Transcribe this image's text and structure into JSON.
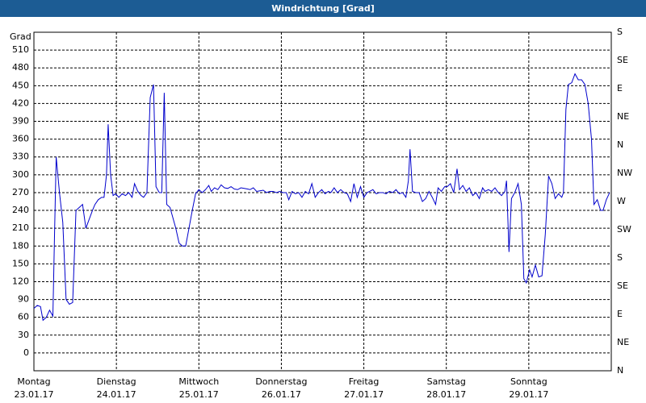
{
  "chart_data": {
    "type": "line",
    "title": "Windrichtung [Grad]",
    "y_label": "Grad",
    "xlim": [
      0,
      7
    ],
    "xticks": [
      {
        "value": 0,
        "label": "Montag"
      },
      {
        "value": 1,
        "label": "Dienstag"
      },
      {
        "value": 2,
        "label": "Mittwoch"
      },
      {
        "value": 3,
        "label": "Donnerstag"
      },
      {
        "value": 4,
        "label": "Freitag"
      },
      {
        "value": 5,
        "label": "Samstag"
      },
      {
        "value": 6,
        "label": "Sonntag"
      }
    ],
    "xtick_dates": [
      "23.01.17",
      "24.01.17",
      "25.01.17",
      "26.01.17",
      "27.01.17",
      "28.01.17",
      "29.01.17"
    ],
    "ylim": [
      -30,
      540
    ],
    "yticks": [
      0,
      30,
      60,
      90,
      120,
      150,
      180,
      210,
      240,
      270,
      300,
      330,
      360,
      390,
      420,
      450,
      480,
      510
    ],
    "y2lim": [
      0,
      540
    ],
    "y2ticks": [
      {
        "value": 0,
        "label": "N"
      },
      {
        "value": 45,
        "label": "NE"
      },
      {
        "value": 90,
        "label": "E"
      },
      {
        "value": 135,
        "label": "SE"
      },
      {
        "value": 180,
        "label": "S"
      },
      {
        "value": 225,
        "label": "SW"
      },
      {
        "value": 270,
        "label": "W"
      },
      {
        "value": 315,
        "label": "NW"
      },
      {
        "value": 360,
        "label": "N"
      },
      {
        "value": 405,
        "label": "NE"
      },
      {
        "value": 450,
        "label": "E"
      },
      {
        "value": 495,
        "label": "SE"
      },
      {
        "value": 540,
        "label": "S"
      }
    ],
    "grid": true,
    "color": "#0000cc",
    "x": [
      0,
      0.04,
      0.08,
      0.11,
      0.15,
      0.19,
      0.23,
      0.25,
      0.27,
      0.31,
      0.35,
      0.39,
      0.43,
      0.47,
      0.51,
      0.55,
      0.59,
      0.63,
      0.67,
      0.71,
      0.74,
      0.78,
      0.82,
      0.85,
      0.88,
      0.9,
      0.93,
      0.96,
      0.99,
      1.03,
      1.07,
      1.11,
      1.15,
      1.19,
      1.22,
      1.26,
      1.3,
      1.33,
      1.37,
      1.41,
      1.45,
      1.48,
      1.52,
      1.55,
      1.58,
      1.61,
      1.65,
      1.68,
      1.72,
      1.76,
      1.8,
      1.84,
      1.88,
      1.92,
      1.96,
      2.0,
      2.04,
      2.08,
      2.12,
      2.15,
      2.19,
      2.23,
      2.27,
      2.31,
      2.35,
      2.39,
      2.43,
      2.47,
      2.51,
      2.55,
      2.59,
      2.62,
      2.66,
      2.7,
      2.74,
      2.78,
      2.82,
      2.86,
      2.9,
      2.94,
      2.98,
      3.02,
      3.06,
      3.09,
      3.13,
      3.17,
      3.21,
      3.25,
      3.29,
      3.33,
      3.37,
      3.41,
      3.45,
      3.49,
      3.53,
      3.57,
      3.6,
      3.64,
      3.68,
      3.72,
      3.76,
      3.8,
      3.84,
      3.88,
      3.92,
      3.96,
      4.0,
      4.04,
      4.07,
      4.11,
      4.15,
      4.19,
      4.23,
      4.27,
      4.31,
      4.35,
      4.39,
      4.43,
      4.47,
      4.51,
      4.54,
      4.56,
      4.59,
      4.63,
      4.67,
      4.71,
      4.75,
      4.79,
      4.83,
      4.87,
      4.9,
      4.94,
      4.98,
      5.01,
      5.05,
      5.09,
      5.13,
      5.16,
      5.2,
      5.24,
      5.28,
      5.32,
      5.36,
      5.4,
      5.44,
      5.47,
      5.51,
      5.55,
      5.59,
      5.63,
      5.67,
      5.71,
      5.73,
      5.76,
      5.79,
      5.83,
      5.87,
      5.91,
      5.94,
      5.97,
      6.01,
      6.04,
      6.08,
      6.12,
      6.16,
      6.2,
      6.24,
      6.28,
      6.32,
      6.36,
      6.4,
      6.42,
      6.45,
      6.48,
      6.52,
      6.56,
      6.6,
      6.64,
      6.68,
      6.72,
      6.76,
      6.79,
      6.83,
      6.87,
      6.9,
      6.94,
      6.98
    ],
    "values": [
      75,
      80,
      78,
      55,
      60,
      72,
      62,
      200,
      330,
      270,
      220,
      90,
      82,
      85,
      240,
      245,
      250,
      210,
      225,
      240,
      250,
      258,
      262,
      262,
      300,
      385,
      300,
      265,
      268,
      262,
      268,
      265,
      270,
      262,
      285,
      272,
      265,
      262,
      270,
      430,
      452,
      280,
      270,
      270,
      438,
      250,
      245,
      230,
      210,
      185,
      180,
      180,
      210,
      240,
      268,
      275,
      270,
      275,
      282,
      272,
      278,
      275,
      283,
      278,
      277,
      280,
      276,
      275,
      278,
      277,
      276,
      275,
      278,
      272,
      273,
      274,
      270,
      272,
      272,
      270,
      272,
      270,
      270,
      258,
      272,
      268,
      270,
      262,
      272,
      268,
      285,
      262,
      270,
      275,
      268,
      272,
      270,
      278,
      270,
      275,
      270,
      268,
      255,
      285,
      262,
      280,
      262,
      270,
      272,
      275,
      268,
      270,
      270,
      268,
      272,
      270,
      275,
      268,
      270,
      262,
      290,
      343,
      272,
      270,
      270,
      255,
      260,
      272,
      262,
      250,
      278,
      272,
      280,
      280,
      285,
      270,
      310,
      275,
      282,
      272,
      278,
      265,
      270,
      260,
      278,
      272,
      275,
      272,
      278,
      270,
      265,
      272,
      290,
      170,
      260,
      270,
      285,
      250,
      125,
      118,
      140,
      128,
      148,
      128,
      130,
      200,
      298,
      285,
      260,
      268,
      262,
      270,
      410,
      452,
      455,
      470,
      460,
      460,
      452,
      420,
      360,
      250,
      258,
      240,
      240,
      258,
      270
    ]
  }
}
